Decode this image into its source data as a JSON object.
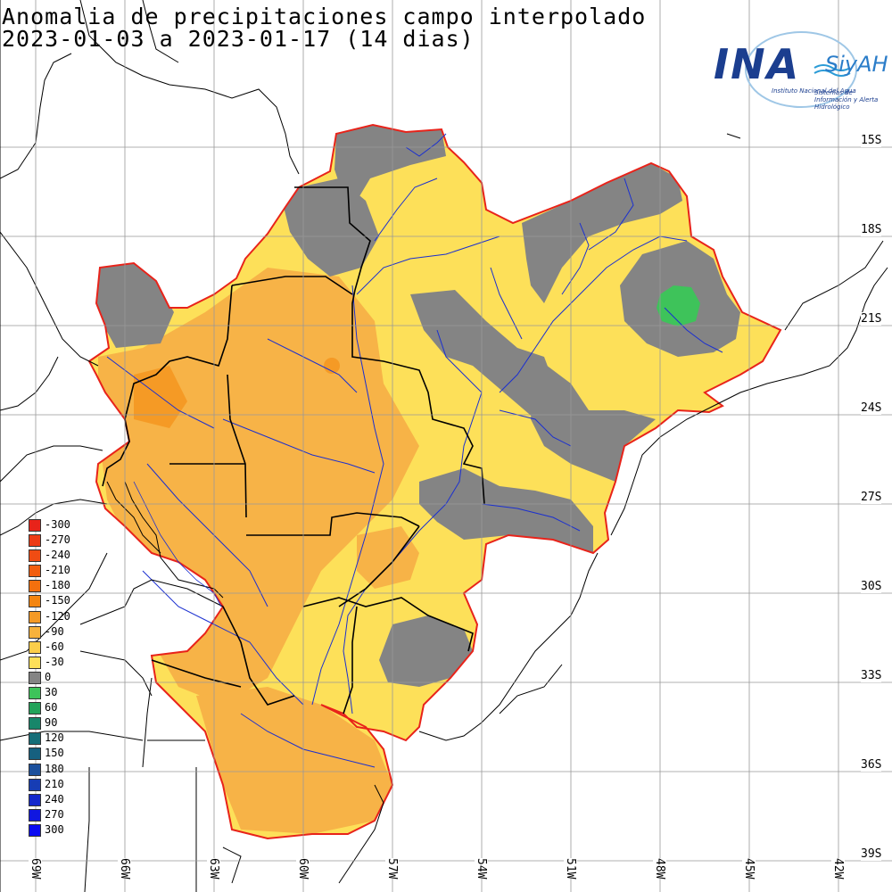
{
  "title": {
    "line1": "Anomalia de precipitaciones campo interpolado",
    "line2": "2023-01-03 a 2023-01-17 (14 dias)"
  },
  "logo": {
    "name": "INA",
    "system": "SiyAH",
    "institution": "Instituto Nacional del Agua",
    "tagline": "Sistemas de Información y Alerta Hidrológico"
  },
  "latitudes": [
    "15S",
    "18S",
    "21S",
    "24S",
    "27S",
    "30S",
    "33S",
    "36S",
    "39S"
  ],
  "longitudes": [
    "69W",
    "66W",
    "63W",
    "60W",
    "57W",
    "54W",
    "51W",
    "48W",
    "45W",
    "42W"
  ],
  "legend": {
    "labels": [
      "-300",
      "-270",
      "-240",
      "-210",
      "-180",
      "-150",
      "-120",
      "-90",
      "-60",
      "-30",
      "0",
      "30",
      "60",
      "90",
      "120",
      "150",
      "180",
      "210",
      "240",
      "270",
      "300"
    ],
    "colors": [
      "#e8231a",
      "#ed3b16",
      "#f04c13",
      "#f25e10",
      "#f3700e",
      "#f4850f",
      "#f59a25",
      "#f7b23c",
      "#fbce4a",
      "#fde059",
      "#848484",
      "#3ec35a",
      "#22a35a",
      "#17866a",
      "#166e78",
      "#16607f",
      "#1a4f9c",
      "#173db4",
      "#1428cc",
      "#1017e0",
      "#0a0bf2"
    ]
  },
  "anomaly_fill": {
    "deficit_orange": "#f7b347",
    "deficit_yellow": "#fde059",
    "neutral_gray": "#848484",
    "surplus_green": "#3ec35a",
    "basin_outline": "#e8231a"
  }
}
